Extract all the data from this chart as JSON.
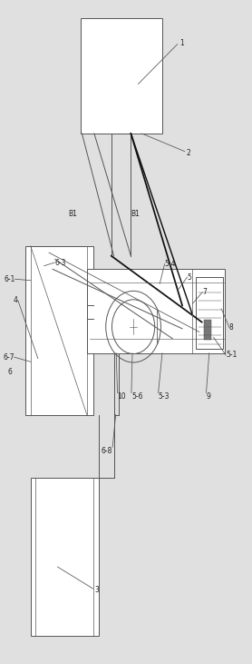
{
  "bg_color": "#e0e0e0",
  "line_color": "#555555",
  "dark_line": "#111111",
  "fig_width": 2.78,
  "fig_height": 7.31,
  "dpi": 100
}
